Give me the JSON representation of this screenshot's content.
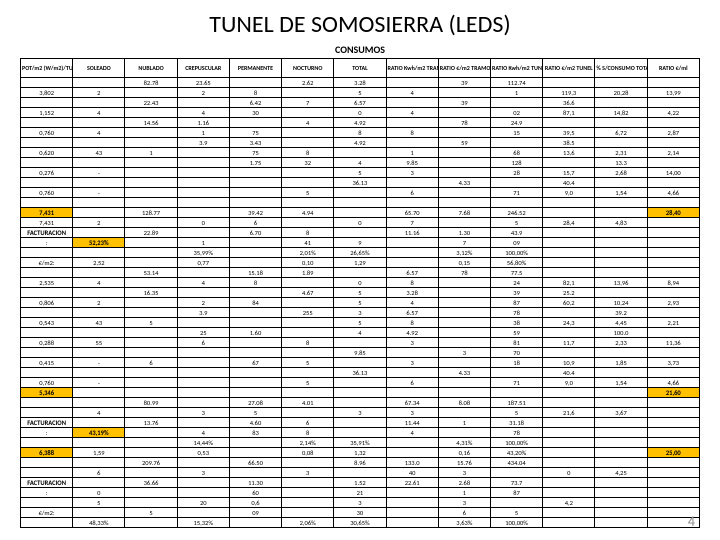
{
  "title": "TUNEL DE SOMOSIERRA (LEDS)",
  "subtitle": "CONSUMOS",
  "page_num": "4",
  "headers": [
    "POT/m2 (W/m2)/TUNEL",
    "SOLEADO",
    "NUBLADO",
    "CREPUSCULAR",
    "PERMANENTE",
    "NOCTURNO",
    "TOTAL",
    "RATIO Kwh/m2 TRAMO",
    "RATIO €/m2 TRAMO",
    "RATIO Kwh/m2 TUNEL",
    "RATIO €/m2 TUNEL",
    "% S/CONSUMO TOTAL",
    "RATIO €/ml"
  ],
  "rows": [
    [
      "",
      "",
      "82.78",
      "23.65",
      "",
      "2.62",
      "3.28",
      "",
      "39",
      "112.74",
      "",
      "",
      "",
      "",
      "",
      ""
    ],
    [
      "3,802",
      "2",
      "",
      "2",
      "8",
      "",
      "5",
      "4",
      "",
      "1",
      "119,3",
      "20,28",
      "13,99",
      "2,23",
      "45,73%",
      "30,91"
    ],
    [
      "",
      "",
      "22.43",
      "",
      "6.42",
      "7",
      "6.57",
      "",
      "39",
      "",
      "36.6",
      "",
      "",
      "",
      "",
      ""
    ],
    [
      "1,152",
      "4",
      "",
      "4",
      "30",
      "",
      "0",
      "4",
      "",
      "02",
      "87,1",
      "14,82",
      "4,22",
      "0,72",
      "14,85%",
      "10,04"
    ],
    [
      "",
      "",
      "14.56",
      "1.16",
      "",
      "4",
      "4.92",
      "",
      "78",
      "24.9",
      "",
      "",
      "",
      "",
      "",
      ""
    ],
    [
      "0,760",
      "4",
      "",
      "1",
      "75",
      "",
      "8",
      "8",
      "",
      "15",
      "39,5",
      "6,72",
      "2,87",
      "0,49",
      "10,11%",
      "6,83"
    ],
    [
      "",
      "",
      "",
      "3.9",
      "3.43",
      "",
      "4.92",
      "",
      "59",
      "",
      "38.5",
      "",
      "",
      "",
      "",
      ""
    ],
    [
      "0,620",
      "43",
      "1",
      "",
      "75",
      "8",
      "",
      "1",
      "",
      "68",
      "13,6",
      "2,31",
      "2,14",
      "0,36",
      "7,53%",
      "5,09"
    ],
    [
      "",
      "",
      "",
      "",
      "1.75",
      "32",
      "4",
      "9.85",
      "",
      "128",
      "",
      "13.3",
      "",
      "",
      "",
      "",
      ""
    ],
    [
      "0,276",
      "-",
      "",
      "",
      "",
      "",
      "5",
      "3",
      "",
      "28",
      "15,7",
      "2,68",
      "14,00",
      "2,38",
      "5,37%",
      "3,63"
    ],
    [
      "",
      "",
      "",
      "",
      "",
      "",
      "36.13",
      "",
      "4.33",
      "",
      "40.4",
      "",
      "",
      "",
      "",
      ""
    ],
    [
      "0,760",
      "-",
      "",
      "",
      "",
      "5",
      "",
      "6",
      "",
      "71",
      "9,0",
      "1,54",
      "4,66",
      "0,79",
      "16,42%",
      "11,10"
    ],
    [
      "",
      "",
      "",
      "",
      "",
      "",
      "",
      "",
      "",
      "",
      "",
      "",
      "",
      "",
      "",
      ""
    ],
    [
      "",
      "",
      "128.77",
      "",
      "39.42",
      "4.94",
      "",
      "65.70",
      "7.68",
      "246.52",
      "",
      "",
      "",
      "",
      "",
      ""
    ],
    [
      "7,431",
      "2",
      "",
      "0",
      "6",
      "",
      "0",
      "7",
      "",
      "5",
      "28,4",
      "4,83",
      "",
      "",
      "100,00%",
      "67,60"
    ],
    [
      "FACTURACION",
      "",
      "22.89",
      "",
      "6.70",
      "8",
      "",
      "11.16",
      "1.30",
      "43.9",
      "",
      "",
      "",
      "",
      "",
      ""
    ],
    [
      ":",
      "1",
      "",
      "1",
      "",
      "41",
      "9",
      "",
      "7",
      "09",
      "",
      "",
      "",
      "",
      "",
      ""
    ],
    [
      "",
      "",
      "",
      "35,99%",
      "",
      "2,01%",
      "26,65%",
      "",
      "3,12%",
      "100,00%",
      "",
      "",
      "",
      "",
      "",
      ""
    ],
    [
      "€/m2:",
      "2,52",
      "",
      "0,77",
      "",
      "0,10",
      "1,29",
      "",
      "0,15",
      "56,80%",
      "",
      "",
      "",
      "",
      "",
      ""
    ],
    [
      "",
      "",
      "53.14",
      "",
      "15.18",
      "1.89",
      "",
      "6.57",
      "78",
      "77.5",
      "",
      "",
      "",
      "",
      "",
      ""
    ],
    [
      "2,535",
      "4",
      "",
      "4",
      "8",
      "",
      "0",
      "8",
      "",
      "24",
      "82,1",
      "13,96",
      "8,94",
      "1,52",
      "41,80%",
      "21,27"
    ],
    [
      "",
      "",
      "16.35",
      "",
      "",
      "4.67",
      "5",
      "3.28",
      "",
      "39",
      "25.2",
      "",
      "",
      "",
      "",
      ""
    ],
    [
      "0,806",
      "2",
      "",
      "2",
      "84",
      "",
      "5",
      "4",
      "",
      "87",
      "60,2",
      "10,24",
      "2,93",
      "0,50",
      "13,48%",
      "6,93"
    ],
    [
      "",
      "",
      "",
      "3.9",
      "",
      "255",
      "3",
      "6.57",
      "",
      "78",
      "",
      "39.2",
      "",
      "",
      "",
      "",
      ""
    ],
    [
      "0,543",
      "43",
      "5",
      "",
      "",
      "",
      "5",
      "8",
      "",
      "38",
      "24,3",
      "4,45",
      "2,21",
      "0,38",
      "10,25%",
      "5,27"
    ],
    [
      "",
      "",
      "",
      "25",
      "1.60",
      "",
      "4",
      "4.92",
      "",
      "59",
      "",
      "100.0",
      "",
      "",
      "",
      "",
      ""
    ],
    [
      "0,288",
      "55",
      "",
      "6",
      "",
      "8",
      "",
      "3",
      "",
      "81",
      "11,7",
      "2,33",
      "11,36",
      "0,20",
      "5,38%",
      "2,76"
    ],
    [
      "",
      "",
      "",
      "",
      "",
      "",
      "9.85",
      "",
      "3",
      "70",
      "",
      "",
      "",
      "",
      "",
      ""
    ],
    [
      "0,415",
      "-",
      "6",
      "",
      "67",
      "5",
      "",
      "3",
      "",
      "18",
      "10,9",
      "1,85",
      "3,73",
      "0,29",
      "7,91%",
      "4,08"
    ],
    [
      "",
      "",
      "",
      "",
      "",
      "",
      "36.13",
      "",
      "4.33",
      "",
      "40.4",
      "",
      "",
      "",
      "",
      ""
    ],
    [
      "0,760",
      "-",
      "",
      "",
      "",
      "5",
      "",
      "6",
      "",
      "71",
      "9,0",
      "1,54",
      "4,66",
      "0,79",
      "21,58%",
      "11,10"
    ],
    [
      "",
      "",
      "",
      "",
      "",
      "",
      "",
      "",
      "",
      "",
      "",
      "",
      "",
      "",
      "",
      ""
    ],
    [
      "",
      "",
      "80.99",
      "",
      "27.08",
      "4.01",
      "",
      "67.34",
      "8.08",
      "187.51",
      "",
      "",
      "",
      "",
      "",
      ""
    ],
    [
      "",
      "4",
      "",
      "3",
      "5",
      "",
      "3",
      "3",
      "",
      "5",
      "21,6",
      "3,67",
      "",
      "",
      "100,00%",
      "51,42"
    ],
    [
      "FACTURACION",
      "",
      "13.76",
      "",
      "4.60",
      "6",
      "",
      "11.44",
      "1",
      "31.18",
      "",
      "",
      "",
      "",
      "",
      ""
    ],
    [
      ":",
      "9",
      "",
      "4",
      "83",
      "8",
      "",
      "4",
      "",
      "78",
      "",
      "",
      "",
      "",
      "",
      ""
    ],
    [
      "",
      "",
      "",
      "14,44%",
      "",
      "2,14%",
      "35,91%",
      "",
      "4,31%",
      "100,00%",
      "",
      "",
      "",
      "",
      "",
      ""
    ],
    [
      "€/m2",
      "1,59",
      "",
      "0,53",
      "",
      "0,08",
      "1,32",
      "",
      "0,16",
      "43,20%",
      "",
      "",
      "",
      "",
      "",
      ""
    ],
    [
      "",
      "",
      "209.76",
      "",
      "66.50",
      "",
      "8.96",
      "133.0",
      "15.76",
      "434.04",
      "",
      "",
      "",
      "",
      "",
      ""
    ],
    [
      "",
      "6",
      "",
      "3",
      "",
      "3",
      "",
      "40",
      "3",
      "",
      "0",
      "4,25",
      "",
      "",
      "",
      "59,51"
    ],
    [
      "FACTURACION",
      "",
      "36.66",
      "",
      "11.30",
      "",
      "1.52",
      "22.61",
      "2.68",
      "73.7",
      "",
      "",
      "",
      "",
      "",
      ""
    ],
    [
      ":",
      "0",
      "",
      "",
      "60",
      "",
      "21",
      "",
      "1",
      "87",
      "",
      "",
      "",
      "",
      "",
      ""
    ],
    [
      "",
      "5",
      "",
      "20",
      "0,6",
      "",
      "3",
      "",
      "3",
      "",
      "4,2",
      "",
      "",
      "",
      "",
      ""
    ],
    [
      "€/m2:",
      "",
      "5",
      "",
      "09",
      "",
      "30",
      "",
      "6",
      "5",
      "",
      "",
      "",
      "",
      "",
      ""
    ],
    [
      "",
      "48,33%",
      "",
      "15,32%",
      "",
      "2,06%",
      "30,65%",
      "",
      "3,63%",
      "100,00%",
      "",
      "",
      "",
      "",
      "",
      ""
    ]
  ],
  "highlight_cells": {
    "13-0": "7,431",
    "16-1": "52,23%",
    "31-0": "5,346",
    "35-1": "43,19%",
    "37-0": "6,388",
    "13-12": "28,40",
    "13-13": "4,83",
    "31-12": "21,60",
    "31-13": "3,67",
    "37-12": "25,00",
    "37-13": "4,25"
  }
}
